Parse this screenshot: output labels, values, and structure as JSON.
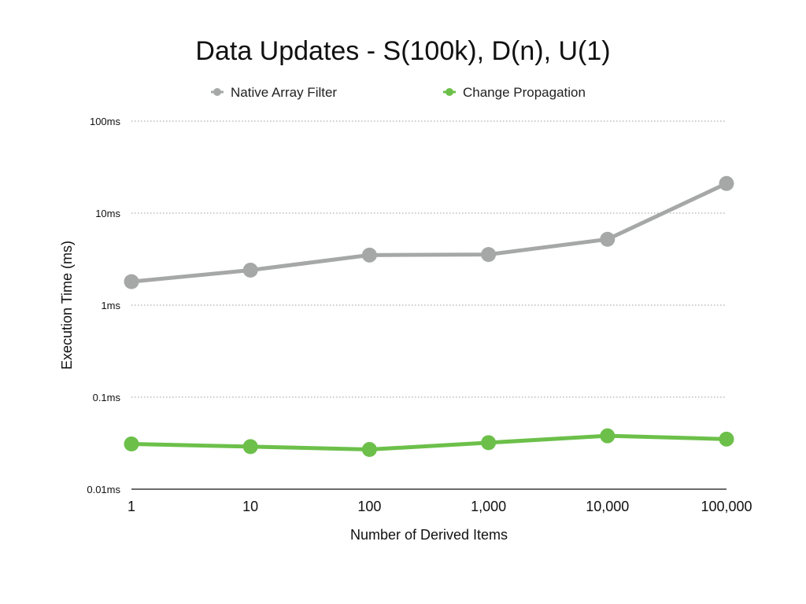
{
  "chart_data": {
    "type": "line",
    "title": "Data Updates - S(100k), D(n), U(1)",
    "xlabel": "Number of Derived Items",
    "ylabel": "Execution Time (ms)",
    "categories": [
      "1",
      "10",
      "100",
      "1,000",
      "10,000",
      "100,000"
    ],
    "y_scale": "log",
    "ylim": [
      0.01,
      100
    ],
    "yticks": [
      {
        "value": 100,
        "label": "100ms"
      },
      {
        "value": 10,
        "label": "10ms"
      },
      {
        "value": 1,
        "label": "1ms"
      },
      {
        "value": 0.1,
        "label": "0.1ms"
      },
      {
        "value": 0.01,
        "label": "0.01ms"
      }
    ],
    "grid": true,
    "legend_position": "top",
    "series": [
      {
        "name": "Native Array Filter",
        "color": "#a6a8a7",
        "values": [
          1.8,
          2.4,
          3.5,
          3.55,
          5.2,
          21
        ]
      },
      {
        "name": "Change Propagation",
        "color": "#6cc04a",
        "values": [
          0.031,
          0.029,
          0.027,
          0.032,
          0.038,
          0.035
        ]
      }
    ]
  }
}
